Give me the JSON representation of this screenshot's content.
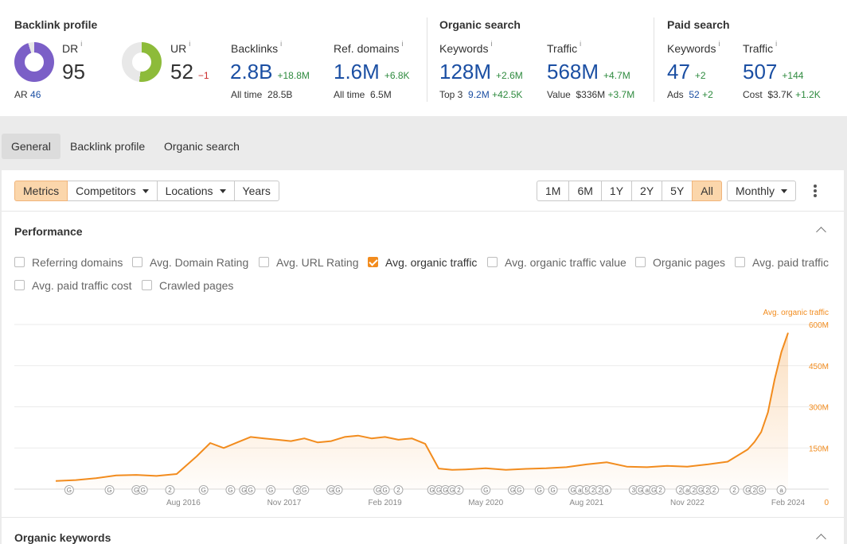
{
  "backlink_profile": {
    "title": "Backlink profile",
    "dr": {
      "label": "DR",
      "value": "95"
    },
    "ar": {
      "label": "AR",
      "value": "46"
    },
    "ur": {
      "label": "UR",
      "value": "52",
      "delta": "−1"
    },
    "backlinks": {
      "label": "Backlinks",
      "value": "2.8B",
      "delta": "+18.8M",
      "sub_label": "All time",
      "sub_value": "28.5B"
    },
    "ref_domains": {
      "label": "Ref. domains",
      "value": "1.6M",
      "delta": "+6.8K",
      "sub_label": "All time",
      "sub_value": "6.5M"
    }
  },
  "organic_search": {
    "title": "Organic search",
    "keywords": {
      "label": "Keywords",
      "value": "128M",
      "delta": "+2.6M",
      "sub_label": "Top 3",
      "sub_value": "9.2M",
      "sub_delta": "+42.5K"
    },
    "traffic": {
      "label": "Traffic",
      "value": "568M",
      "delta": "+4.7M",
      "sub_label": "Value",
      "sub_value": "$336M",
      "sub_delta": "+3.7M"
    }
  },
  "paid_search": {
    "title": "Paid search",
    "keywords": {
      "label": "Keywords",
      "value": "47",
      "delta": "+2",
      "sub_label": "Ads",
      "sub_value": "52",
      "sub_delta": "+2"
    },
    "traffic": {
      "label": "Traffic",
      "value": "507",
      "delta": "+144",
      "sub_label": "Cost",
      "sub_value": "$3.7K",
      "sub_delta": "+1.2K"
    }
  },
  "info_marker": "i",
  "tabs": [
    "General",
    "Backlink profile",
    "Organic search"
  ],
  "toolbar": {
    "metrics": "Metrics",
    "competitors": "Competitors",
    "locations": "Locations",
    "years": "Years",
    "ranges": [
      "1M",
      "6M",
      "1Y",
      "2Y",
      "5Y",
      "All"
    ],
    "active_range": "All",
    "granularity": "Monthly"
  },
  "performance": {
    "title": "Performance",
    "checkboxes": [
      {
        "label": "Referring domains",
        "checked": false
      },
      {
        "label": "Avg. Domain Rating",
        "checked": false
      },
      {
        "label": "Avg. URL Rating",
        "checked": false
      },
      {
        "label": "Avg. organic traffic",
        "checked": true
      },
      {
        "label": "Avg. organic traffic value",
        "checked": false
      },
      {
        "label": "Organic pages",
        "checked": false
      },
      {
        "label": "Avg. paid traffic",
        "checked": false
      },
      {
        "label": "Avg. paid traffic cost",
        "checked": false
      },
      {
        "label": "Crawled pages",
        "checked": false
      }
    ]
  },
  "organic_keywords_title": "Organic keywords",
  "colors": {
    "accent": "#f28c1e",
    "value_blue": "#1b4fa3",
    "delta_green": "#2e8a3e",
    "delta_red": "#cc2b2b",
    "dr_donut": "#7b5fc7",
    "ur_donut": "#8dbb3a"
  },
  "chart_data": {
    "type": "area",
    "series": [
      {
        "name": "Avg. organic traffic",
        "x": [
          "2015-01",
          "2015-04",
          "2015-07",
          "2015-10",
          "2016-01",
          "2016-04",
          "2016-07",
          "2016-10",
          "2016-12",
          "2017-02",
          "2017-04",
          "2017-06",
          "2017-08",
          "2017-10",
          "2017-12",
          "2018-02",
          "2018-04",
          "2018-06",
          "2018-08",
          "2018-10",
          "2018-12",
          "2019-02",
          "2019-04",
          "2019-06",
          "2019-08",
          "2019-10",
          "2019-12",
          "2020-02",
          "2020-05",
          "2020-08",
          "2020-11",
          "2021-02",
          "2021-05",
          "2021-08",
          "2021-11",
          "2022-02",
          "2022-05",
          "2022-08",
          "2022-11",
          "2023-02",
          "2023-05",
          "2023-08",
          "2023-09",
          "2023-10",
          "2023-11",
          "2023-12",
          "2024-01",
          "2024-02"
        ],
        "y": [
          30,
          33,
          40,
          50,
          52,
          48,
          55,
          120,
          168,
          150,
          170,
          190,
          185,
          180,
          175,
          185,
          170,
          175,
          190,
          195,
          185,
          190,
          180,
          185,
          165,
          75,
          70,
          72,
          76,
          70,
          74,
          76,
          80,
          90,
          98,
          82,
          80,
          85,
          82,
          90,
          100,
          145,
          172,
          208,
          280,
          400,
          500,
          570
        ]
      }
    ],
    "x_ticks": [
      "Aug 2016",
      "Nov 2017",
      "Feb 2019",
      "May 2020",
      "Aug 2021",
      "Nov 2022",
      "Feb 2024"
    ],
    "y_ticks": [
      "0",
      "150M",
      "300M",
      "450M",
      "600M"
    ],
    "y_unit": "M",
    "ylim": [
      0,
      600
    ],
    "legend": "Avg. organic traffic",
    "legend_position": "top-right",
    "grid": true,
    "annotations": [
      {
        "x": "2015-03",
        "label": "G"
      },
      {
        "x": "2015-09",
        "label": "G"
      },
      {
        "x": "2016-01",
        "label": "G"
      },
      {
        "x": "2016-02",
        "label": "G"
      },
      {
        "x": "2016-06",
        "label": "2"
      },
      {
        "x": "2016-11",
        "label": "G"
      },
      {
        "x": "2017-03",
        "label": "G"
      },
      {
        "x": "2017-05",
        "label": "G"
      },
      {
        "x": "2017-06",
        "label": "G"
      },
      {
        "x": "2017-09",
        "label": "G"
      },
      {
        "x": "2018-01",
        "label": "2"
      },
      {
        "x": "2018-02",
        "label": "G"
      },
      {
        "x": "2018-06",
        "label": "G"
      },
      {
        "x": "2018-07",
        "label": "G"
      },
      {
        "x": "2019-01",
        "label": "G"
      },
      {
        "x": "2019-02",
        "label": "G"
      },
      {
        "x": "2019-04",
        "label": "2"
      },
      {
        "x": "2019-09",
        "label": "G"
      },
      {
        "x": "2019-10",
        "label": "G"
      },
      {
        "x": "2019-11",
        "label": "G"
      },
      {
        "x": "2019-12",
        "label": "G"
      },
      {
        "x": "2020-01",
        "label": "2"
      },
      {
        "x": "2020-05",
        "label": "G"
      },
      {
        "x": "2020-09",
        "label": "G"
      },
      {
        "x": "2020-10",
        "label": "G"
      },
      {
        "x": "2021-01",
        "label": "G"
      },
      {
        "x": "2021-03",
        "label": "G"
      },
      {
        "x": "2021-06",
        "label": "G"
      },
      {
        "x": "2021-07",
        "label": "a"
      },
      {
        "x": "2021-08",
        "label": "5"
      },
      {
        "x": "2021-09",
        "label": "2"
      },
      {
        "x": "2021-10",
        "label": "2"
      },
      {
        "x": "2021-11",
        "label": "a"
      },
      {
        "x": "2022-03",
        "label": "3"
      },
      {
        "x": "2022-04",
        "label": "G"
      },
      {
        "x": "2022-05",
        "label": "a"
      },
      {
        "x": "2022-06",
        "label": "G"
      },
      {
        "x": "2022-07",
        "label": "2"
      },
      {
        "x": "2022-10",
        "label": "2"
      },
      {
        "x": "2022-11",
        "label": "a"
      },
      {
        "x": "2022-12",
        "label": "2"
      },
      {
        "x": "2023-01",
        "label": "G"
      },
      {
        "x": "2023-02",
        "label": "2"
      },
      {
        "x": "2023-03",
        "label": "2"
      },
      {
        "x": "2023-06",
        "label": "2"
      },
      {
        "x": "2023-08",
        "label": "G"
      },
      {
        "x": "2023-09",
        "label": "2"
      },
      {
        "x": "2023-10",
        "label": "G"
      },
      {
        "x": "2024-01",
        "label": "a"
      }
    ]
  }
}
